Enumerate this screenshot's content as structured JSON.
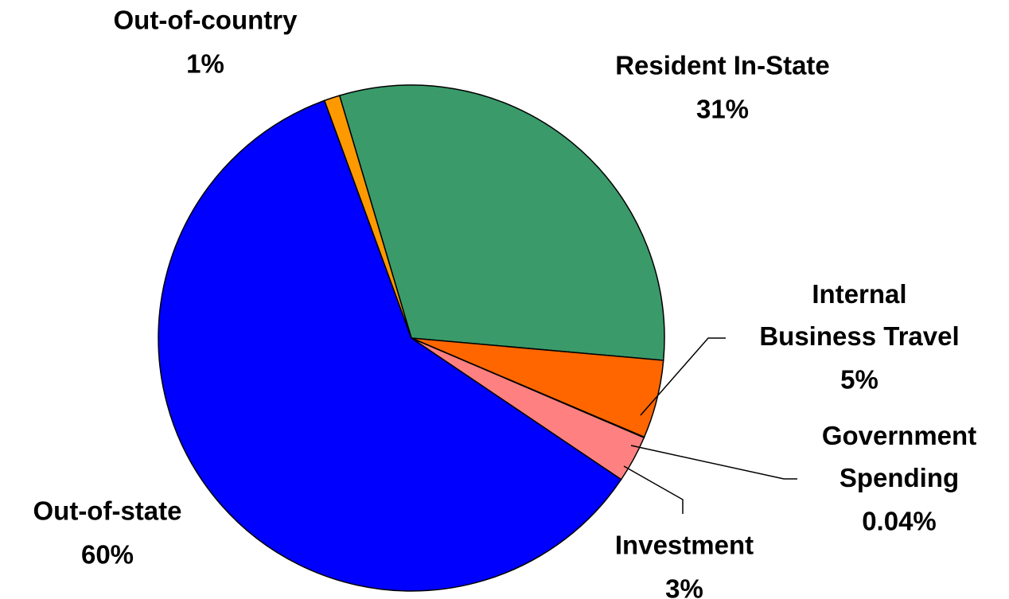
{
  "chart_data": {
    "type": "pie",
    "categories": [
      "Resident In-State",
      "Internal Business Travel",
      "Government Spending",
      "Investment",
      "Out-of-state",
      "Out-of-country"
    ],
    "values": [
      31,
      5,
      0.04,
      3,
      60,
      1
    ],
    "value_labels": [
      "31%",
      "5%",
      "0.04%",
      "3%",
      "60%",
      "1%"
    ],
    "colors": [
      "#3a9a6a",
      "#ff6600",
      "#ffcc00",
      "#ff8080",
      "#0000ff",
      "#ff9900"
    ]
  }
}
